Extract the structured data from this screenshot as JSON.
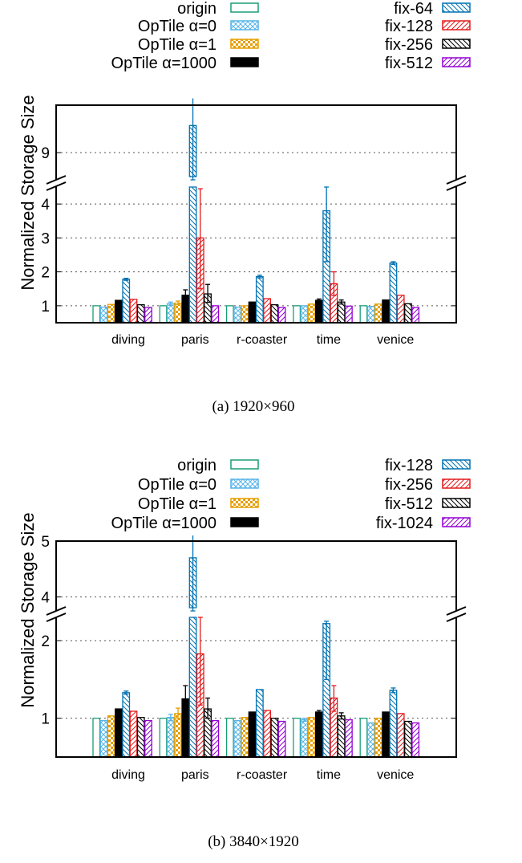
{
  "chart_data": [
    {
      "type": "bar",
      "caption": "(a)  1920×960",
      "ylabel": "Normalized Storage Size",
      "categories": [
        "diving",
        "paris",
        "r-coaster",
        "time",
        "venice"
      ],
      "y_axis": {
        "broken": true,
        "lower_range": [
          0.5,
          4.5
        ],
        "upper_range": [
          8.2,
          10.4
        ],
        "ticks": [
          1,
          2,
          3,
          4,
          9
        ]
      },
      "grid": "horizontal dotted",
      "legend_placement": "top, two columns",
      "series": [
        {
          "name": "origin",
          "color": "#1a9e77",
          "pattern": "empty",
          "values": [
            1.0,
            1.0,
            1.0,
            1.0,
            1.0
          ],
          "errors": [
            null,
            null,
            null,
            null,
            null
          ]
        },
        {
          "name": "OpTile α=0",
          "color": "#56b4e9",
          "pattern": "crosshatch",
          "values": [
            0.96,
            1.06,
            0.96,
            1.0,
            0.98
          ],
          "errors": [
            null,
            [
              1.01,
              1.11
            ],
            null,
            null,
            null
          ]
        },
        {
          "name": "OpTile α=1",
          "color": "#e69f00",
          "pattern": "checker",
          "values": [
            1.04,
            1.08,
            1.0,
            1.05,
            1.05
          ],
          "errors": [
            null,
            [
              1.03,
              1.14
            ],
            null,
            null,
            null
          ]
        },
        {
          "name": "OpTile α=1000",
          "color": "#000000",
          "pattern": "solid",
          "values": [
            1.16,
            1.31,
            1.11,
            1.16,
            1.17
          ],
          "errors": [
            null,
            [
              1.17,
              1.47
            ],
            null,
            [
              1.12,
              1.2
            ],
            null
          ]
        },
        {
          "name": "fix-64",
          "color": "#0072b2",
          "pattern": "backslash",
          "values": [
            1.78,
            9.8,
            1.86,
            3.8,
            2.26
          ],
          "errors": [
            [
              1.75,
              1.81
            ],
            [
              8.2,
              10.6
            ],
            [
              1.82,
              1.9
            ],
            [
              2.3,
              4.5
            ],
            [
              2.22,
              2.3
            ]
          ]
        },
        {
          "name": "fix-128",
          "color": "#e41a1c",
          "pattern": "slash",
          "values": [
            1.19,
            3.0,
            1.21,
            1.65,
            1.31
          ],
          "errors": [
            null,
            [
              1.5,
              4.45
            ],
            null,
            [
              1.3,
              2.0
            ],
            null
          ]
        },
        {
          "name": "fix-256",
          "color": "#000000",
          "pattern": "backslash",
          "values": [
            1.03,
            1.35,
            1.03,
            1.11,
            1.06
          ],
          "errors": [
            null,
            [
              1.1,
              1.63
            ],
            null,
            [
              1.05,
              1.17
            ],
            null
          ]
        },
        {
          "name": "fix-512",
          "color": "#9400d3",
          "pattern": "slash",
          "values": [
            0.95,
            1.0,
            0.95,
            0.99,
            0.95
          ],
          "errors": [
            null,
            null,
            null,
            null,
            null
          ]
        }
      ]
    },
    {
      "type": "bar",
      "caption": "(b)  3840×1920",
      "ylabel": "Normalized Storage Size",
      "categories": [
        "diving",
        "paris",
        "r-coaster",
        "time",
        "venice"
      ],
      "y_axis": {
        "broken": true,
        "lower_range": [
          0.5,
          2.3
        ],
        "upper_range": [
          3.75,
          5
        ],
        "ticks": [
          1,
          2,
          4,
          5
        ]
      },
      "grid": "horizontal dotted",
      "legend_placement": "top, two columns",
      "series": [
        {
          "name": "origin",
          "color": "#1a9e77",
          "pattern": "empty",
          "values": [
            1.0,
            1.0,
            1.0,
            1.0,
            1.0
          ],
          "errors": [
            null,
            null,
            null,
            null,
            null
          ]
        },
        {
          "name": "OpTile α=0",
          "color": "#56b4e9",
          "pattern": "crosshatch",
          "values": [
            0.97,
            1.01,
            0.97,
            0.98,
            0.94
          ],
          "errors": [
            null,
            [
              0.97,
              1.05
            ],
            null,
            [
              0.96,
              1.0
            ],
            null
          ]
        },
        {
          "name": "OpTile α=1",
          "color": "#e69f00",
          "pattern": "checker",
          "values": [
            1.03,
            1.06,
            1.01,
            1.01,
            1.0
          ],
          "errors": [
            null,
            [
              0.99,
              1.13
            ],
            null,
            null,
            null
          ]
        },
        {
          "name": "OpTile α=1000",
          "color": "#000000",
          "pattern": "solid",
          "values": [
            1.12,
            1.25,
            1.08,
            1.08,
            1.08
          ],
          "errors": [
            null,
            [
              1.08,
              1.42
            ],
            null,
            [
              1.06,
              1.1
            ],
            null
          ]
        },
        {
          "name": "fix-128",
          "color": "#0072b2",
          "pattern": "backslash",
          "values": [
            1.33,
            4.7,
            1.37,
            2.22,
            1.36
          ],
          "errors": [
            [
              1.31,
              1.35
            ],
            [
              3.75,
              5.1
            ],
            null,
            [
              1.5,
              2.25
            ],
            [
              1.33,
              1.39
            ]
          ]
        },
        {
          "name": "fix-256",
          "color": "#e41a1c",
          "pattern": "slash",
          "values": [
            1.09,
            1.83,
            1.1,
            1.26,
            1.06
          ],
          "errors": [
            null,
            [
              1.17,
              2.3
            ],
            null,
            [
              1.09,
              1.42
            ],
            null
          ]
        },
        {
          "name": "fix-512",
          "color": "#000000",
          "pattern": "backslash",
          "values": [
            1.01,
            1.12,
            1.0,
            1.03,
            0.96
          ],
          "errors": [
            null,
            [
              1.0,
              1.26
            ],
            null,
            [
              0.99,
              1.07
            ],
            null
          ]
        },
        {
          "name": "fix-1024",
          "color": "#9400d3",
          "pattern": "slash",
          "values": [
            0.97,
            0.97,
            0.96,
            0.98,
            0.94
          ],
          "errors": [
            null,
            null,
            null,
            null,
            null
          ]
        }
      ]
    }
  ]
}
